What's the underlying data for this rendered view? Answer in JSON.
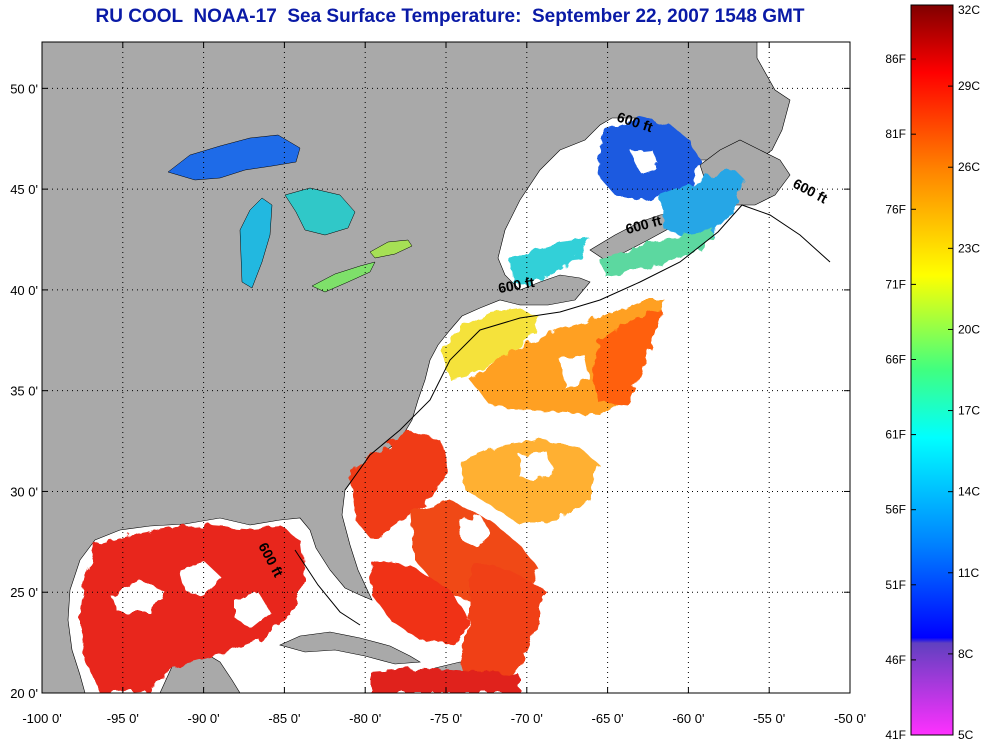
{
  "title": "RU COOL  NOAA-17  Sea Surface Temperature:  September 22, 2007 1548 GMT",
  "colors": {
    "land": "#a9a9a9",
    "cloud_nodata": "#ffffff",
    "title": "#0a1aa6"
  },
  "axes": {
    "x_ticks": [
      "-100 0'",
      "-95 0'",
      "-90 0'",
      "-85 0'",
      "-80 0'",
      "-75 0'",
      "-70 0'",
      "-65 0'",
      "-60 0'",
      "-55 0'",
      "-50 0'"
    ],
    "x_values": [
      -100,
      -95,
      -90,
      -85,
      -80,
      -75,
      -70,
      -65,
      -60,
      -55,
      -50
    ],
    "y_ticks": [
      "20 0'",
      "25 0'",
      "30 0'",
      "35 0'",
      "40 0'",
      "45 0'",
      "50 0'"
    ],
    "y_values": [
      20,
      25,
      30,
      35,
      40,
      45,
      50
    ],
    "lon_range": [
      -100,
      -50
    ],
    "lat_range": [
      20,
      52.3
    ],
    "grid": "dotted"
  },
  "contours": {
    "label": "600 ft",
    "labels": [
      {
        "text": "600 ft",
        "lon": -63.4,
        "lat": 48.1,
        "angle": 18
      },
      {
        "text": "600 ft",
        "lon": -52.6,
        "lat": 44.7,
        "angle": 28
      },
      {
        "text": "600 ft",
        "lon": -62.7,
        "lat": 43.0,
        "angle": -15
      },
      {
        "text": "600 ft",
        "lon": -70.6,
        "lat": 40.0,
        "angle": -10
      },
      {
        "text": "600 ft",
        "lon": -86.1,
        "lat": 26.5,
        "angle": 62
      }
    ]
  },
  "colorbar": {
    "celsius_labels": [
      "32C",
      "29C",
      "26C",
      "23C",
      "20C",
      "17C",
      "14C",
      "11C",
      "8C",
      "5C"
    ],
    "celsius_values": [
      32,
      29,
      26,
      23,
      20,
      17,
      14,
      11,
      8,
      5
    ],
    "fahrenheit_labels": [
      "86F",
      "81F",
      "76F",
      "71F",
      "66F",
      "61F",
      "56F",
      "51F",
      "46F",
      "41F"
    ],
    "fahrenheit_values": [
      86,
      81,
      76,
      71,
      66,
      61,
      56,
      51,
      46,
      41
    ],
    "range_c": [
      5,
      32
    ],
    "stops": [
      {
        "c": 32,
        "color": "#800000"
      },
      {
        "c": 29.5,
        "color": "#ff0000"
      },
      {
        "c": 26,
        "color": "#ff8000"
      },
      {
        "c": 22,
        "color": "#ffff00"
      },
      {
        "c": 18.5,
        "color": "#40ff80"
      },
      {
        "c": 16,
        "color": "#00ffff"
      },
      {
        "c": 12,
        "color": "#0080ff"
      },
      {
        "c": 8.6,
        "color": "#0000ff"
      },
      {
        "c": 8.4,
        "color": "#6040c0"
      },
      {
        "c": 5,
        "color": "#ff30ff"
      }
    ]
  }
}
